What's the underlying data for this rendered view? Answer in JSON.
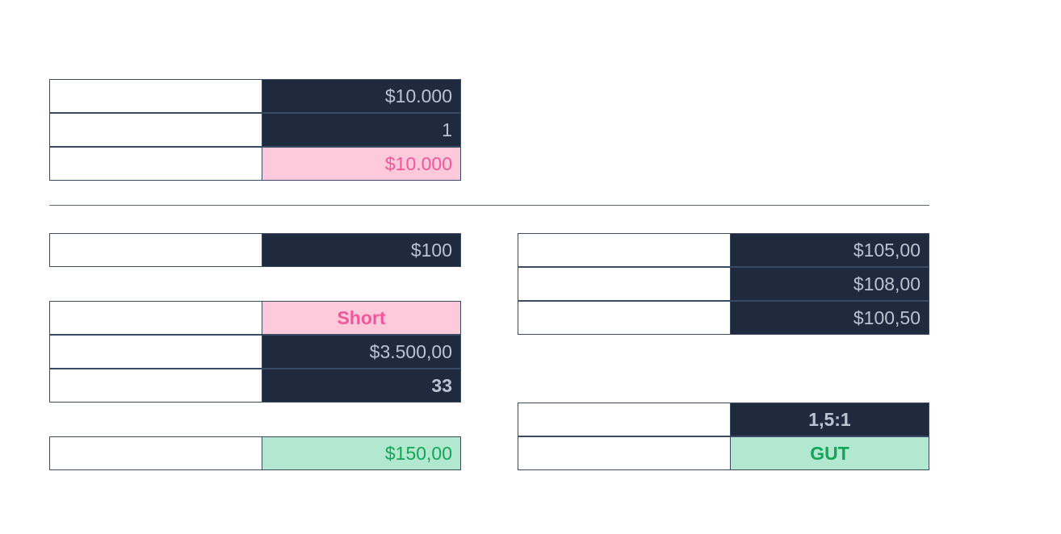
{
  "account_section": {
    "rows": [
      {
        "label": "",
        "value": "$10.000"
      },
      {
        "label": "",
        "value": "1"
      },
      {
        "label": "",
        "value": "$10.000"
      }
    ]
  },
  "risk_section": {
    "rows": [
      {
        "label": "",
        "value": "$100"
      }
    ]
  },
  "position_section": {
    "rows": [
      {
        "label": "",
        "value": "Short"
      },
      {
        "label": "",
        "value": "$3.500,00"
      },
      {
        "label": "",
        "value": "33"
      }
    ]
  },
  "profit_section": {
    "rows": [
      {
        "label": "",
        "value": "$150,00"
      }
    ]
  },
  "price_section": {
    "rows": [
      {
        "label": "",
        "value": "$105,00"
      },
      {
        "label": "",
        "value": "$108,00"
      },
      {
        "label": "",
        "value": "$100,50"
      }
    ]
  },
  "ratio_section": {
    "rows": [
      {
        "label": "",
        "value": "1,5:1"
      },
      {
        "label": "",
        "value": "GUT"
      }
    ]
  },
  "colors": {
    "dark_cell": "#1f2a3e",
    "dark_text": "#b9c3d1",
    "pink_cell": "#ffc9dc",
    "pink_text": "#f0589a",
    "green_cell": "#b2e8cf",
    "green_text": "#14a55a",
    "border": "#3a4a63"
  }
}
